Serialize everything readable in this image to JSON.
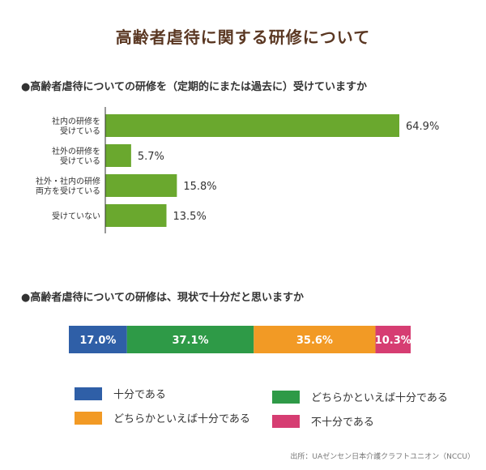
{
  "title": "高齢者虐待に関する研修について",
  "section1_title": "●高齢者虐待についての研修を（定期的にまたは過去に）受けていますか",
  "section2_title": "●高齢者虐待についての研修は、現状で十分だと思いますか",
  "source": "出所：UAゼンセン日本介護クラフトユニオン（NCCU）",
  "chart_data": [
    {
      "type": "bar",
      "orientation": "horizontal",
      "categories": [
        [
          "社内の研修を",
          "受けている"
        ],
        [
          "社外の研修を",
          "受けている"
        ],
        [
          "社外・社内の研修",
          "両方を受けている"
        ],
        [
          "受けていない"
        ]
      ],
      "values": [
        64.9,
        5.7,
        15.8,
        13.5
      ],
      "value_labels": [
        "64.9%",
        "5.7%",
        "15.8%",
        "13.5%"
      ],
      "xlim": [
        0,
        70
      ],
      "color": "#6aa82e",
      "grid": false,
      "title": "●高齢者虐待についての研修を（定期的にまたは過去に）受けていますか"
    },
    {
      "type": "bar",
      "orientation": "stacked-100",
      "series": [
        {
          "name": "十分である",
          "value": 17.0,
          "label": "17.0%",
          "color": "#2f5fa7"
        },
        {
          "name": "どちらかといえば十分である",
          "value": 37.1,
          "label": "37.1%",
          "color": "#2e9a47"
        },
        {
          "name": "どちらかといえば十分である",
          "value": 35.6,
          "label": "35.6%",
          "color": "#f29a25"
        },
        {
          "name": "不十分である",
          "value": 10.3,
          "label": "10.3%",
          "color": "#d63d72"
        }
      ],
      "legend_position": "bottom",
      "title": "●高齢者虐待についての研修は、現状で十分だと思いますか"
    }
  ]
}
